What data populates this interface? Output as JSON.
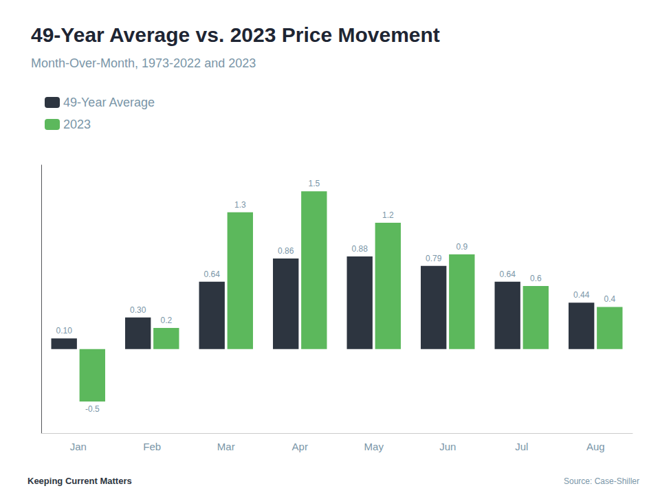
{
  "chart_data": {
    "type": "bar",
    "title": "49-Year Average vs. 2023 Price Movement",
    "subtitle": "Month-Over-Month, 1973-2022 and 2023",
    "categories": [
      "Jan",
      "Feb",
      "Mar",
      "Apr",
      "May",
      "Jun",
      "Jul",
      "Aug"
    ],
    "series": [
      {
        "name": "49-Year Average",
        "color": "#2d3540",
        "values": [
          0.1,
          0.3,
          0.64,
          0.86,
          0.88,
          0.79,
          0.64,
          0.44
        ],
        "value_labels": [
          "0.10",
          "0.30",
          "0.64",
          "0.86",
          "0.88",
          "0.79",
          "0.64",
          "0.44"
        ]
      },
      {
        "name": "2023",
        "color": "#5cb85c",
        "values": [
          -0.5,
          0.2,
          1.3,
          1.5,
          1.2,
          0.9,
          0.6,
          0.4
        ]
      }
    ],
    "ylim": [
      -0.8,
      1.75
    ],
    "tick_labels": "x",
    "grid": false,
    "legend": "upper left",
    "data_labels": true,
    "annotations": [
      "Keeping Current Matters",
      "Source: Case-Shiller"
    ]
  }
}
